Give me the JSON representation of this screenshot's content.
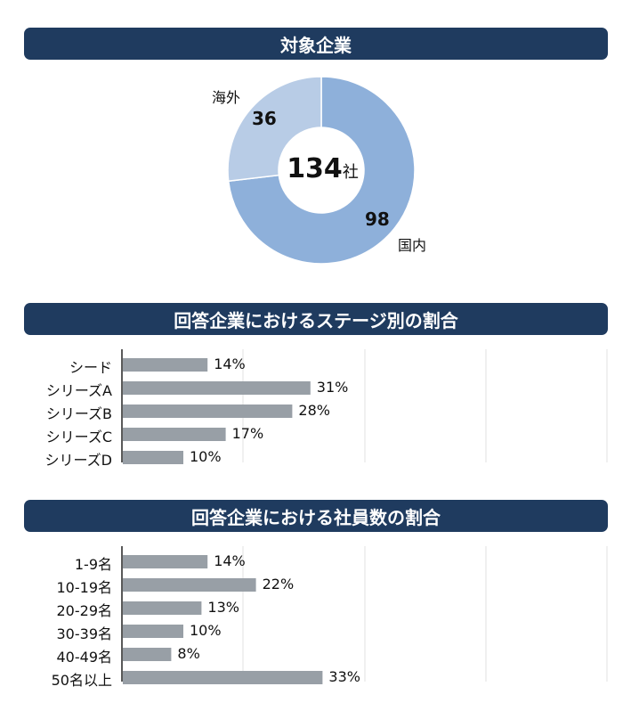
{
  "sections": {
    "companies": {
      "title": "対象企業"
    },
    "stage": {
      "title": "回答企業におけるステージ別の割合"
    },
    "employees": {
      "title": "回答企業における社員数の割合"
    }
  },
  "chart_data": [
    {
      "type": "pie",
      "style": "donut",
      "center_value": "134",
      "center_unit": "社",
      "slices": [
        {
          "label": "国内",
          "value": 98,
          "color": "#8eb0da"
        },
        {
          "label": "海外",
          "value": 36,
          "color": "#b8cce6"
        }
      ]
    },
    {
      "type": "bar",
      "orientation": "horizontal",
      "categories": [
        "シード",
        "シリーズA",
        "シリーズB",
        "シリーズC",
        "シリーズD"
      ],
      "values": [
        14,
        31,
        28,
        17,
        10
      ],
      "value_labels": [
        "14%",
        "31%",
        "28%",
        "17%",
        "10%"
      ],
      "xlim": [
        0,
        40
      ],
      "grid": true,
      "color": "#989fa6"
    },
    {
      "type": "bar",
      "orientation": "horizontal",
      "categories": [
        "1-9名",
        "10-19名",
        "20-29名",
        "30-39名",
        "40-49名",
        "50名以上"
      ],
      "values": [
        14,
        22,
        13,
        10,
        8,
        33
      ],
      "value_labels": [
        "14%",
        "22%",
        "13%",
        "10%",
        "8%",
        "33%"
      ],
      "xlim": [
        0,
        40
      ],
      "grid": true,
      "color": "#989fa6"
    }
  ]
}
